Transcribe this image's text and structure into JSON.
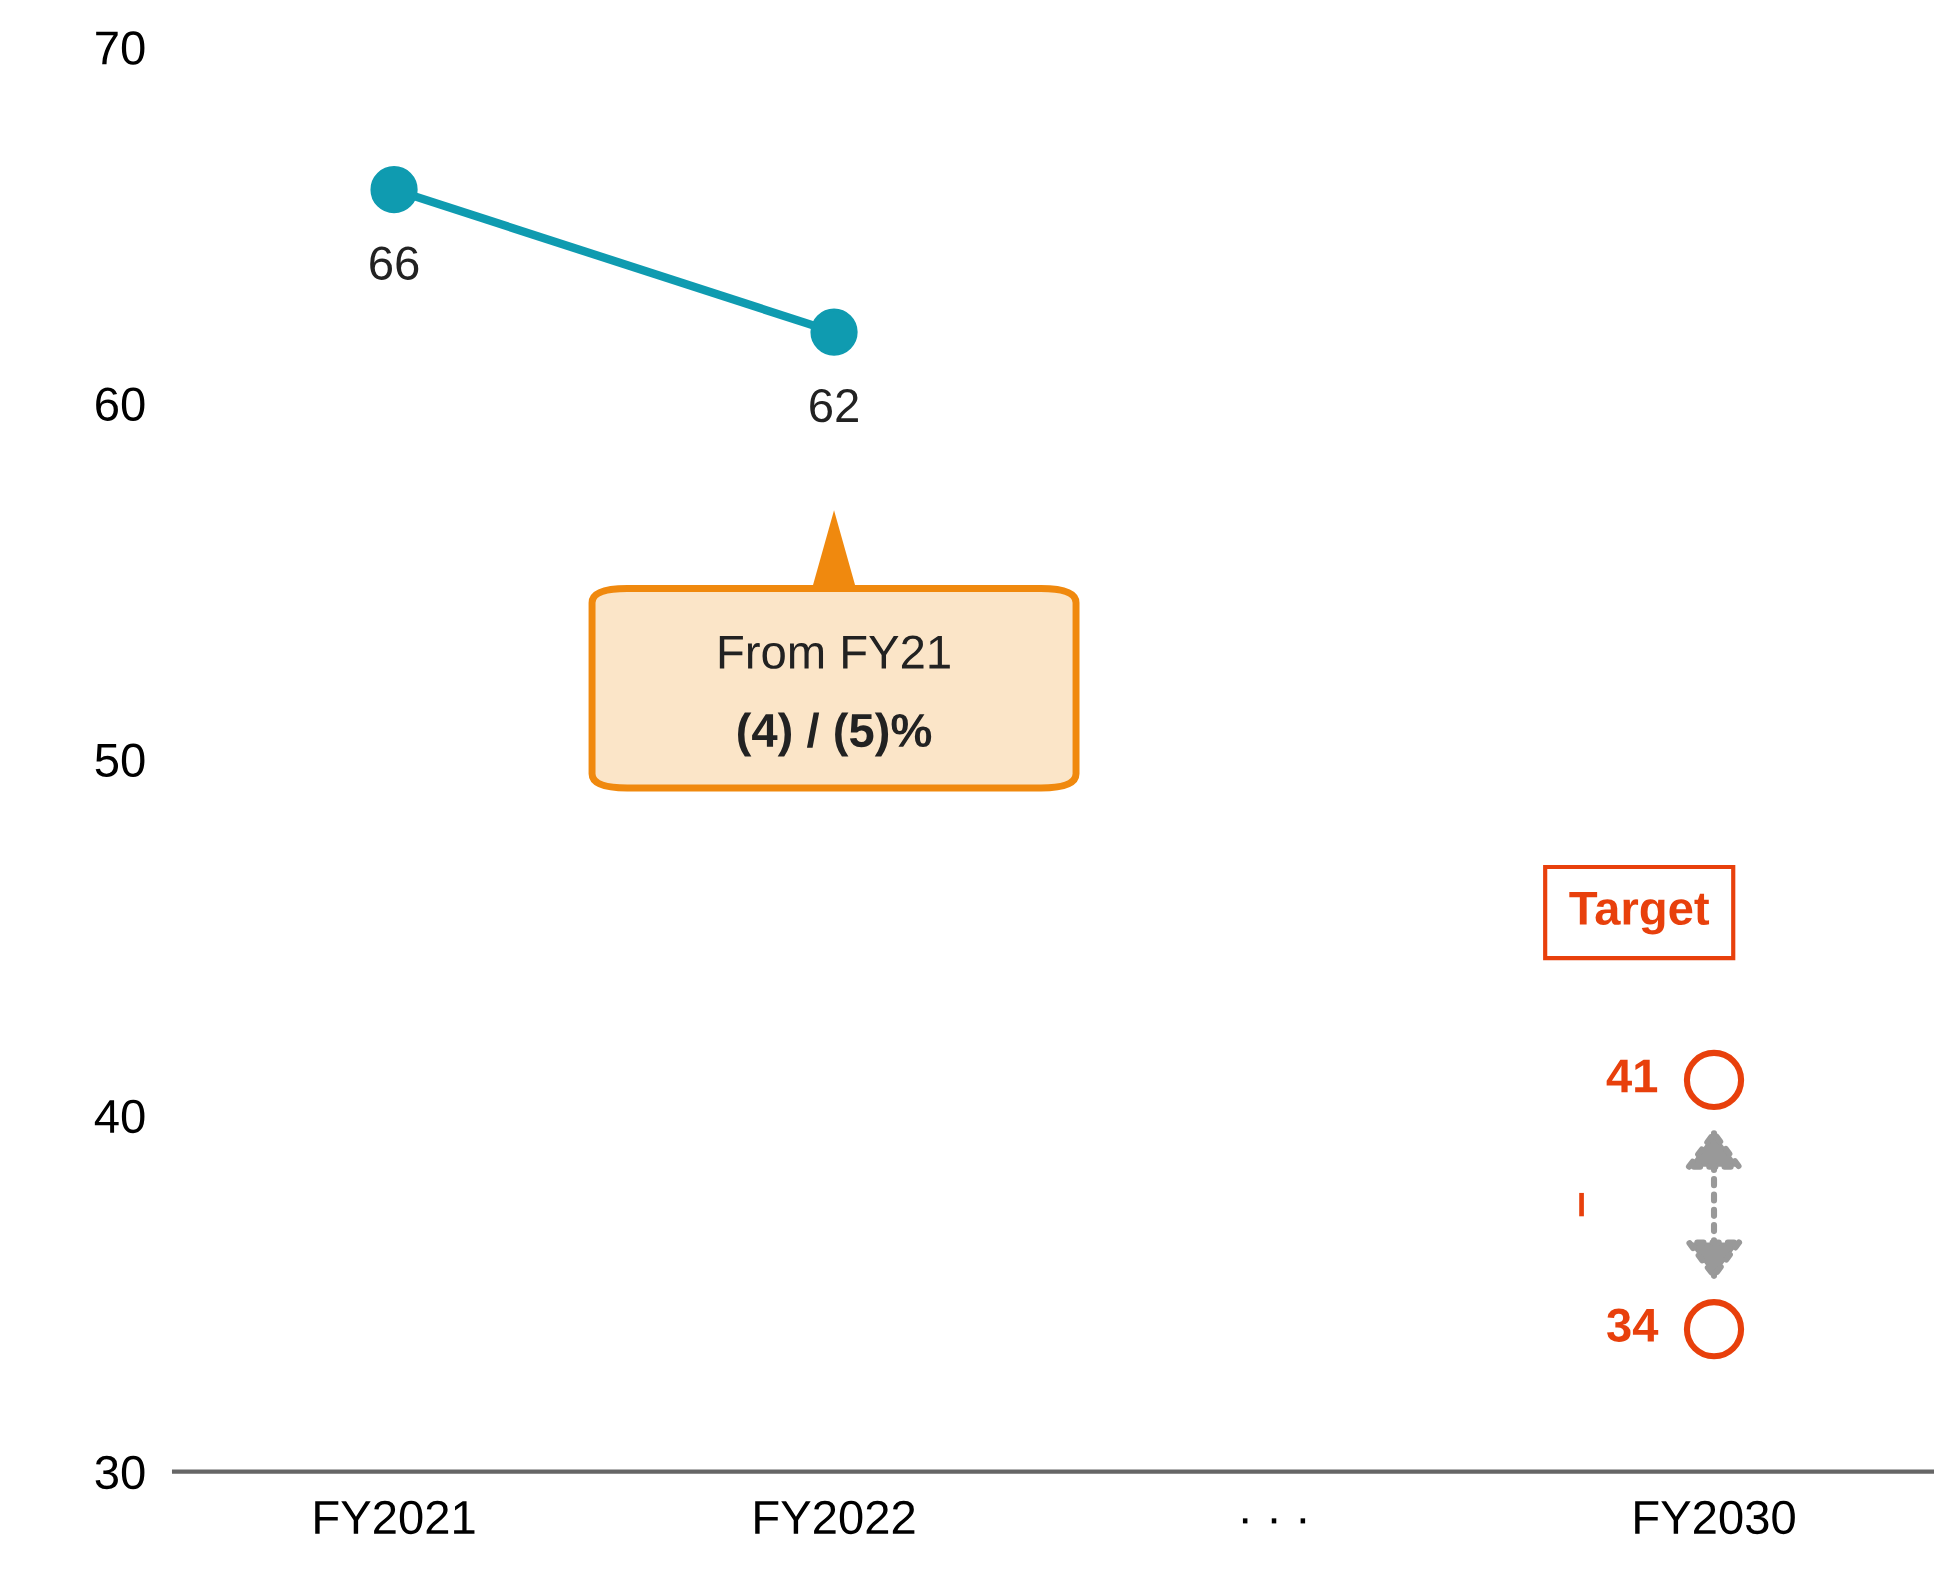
{
  "chart_data": {
    "type": "line",
    "categories": [
      "FY2021",
      "FY2022",
      "· · ·",
      "FY2030"
    ],
    "series": [
      {
        "color": "#0f9bb0",
        "values": [
          66,
          62,
          null,
          null
        ],
        "marker": "circle"
      },
      {
        "type": "scatter",
        "color": "#e8400c",
        "x": [
          "FY2030",
          "FY2030"
        ],
        "values": [
          41,
          34
        ],
        "marker": "circle"
      }
    ],
    "ylim": [
      30,
      70
    ],
    "yticks": [
      30,
      40,
      50,
      60,
      70
    ],
    "data_labels": true,
    "grid": false,
    "legend": false,
    "annotations": [
      "From FY21\n(4) / (5)%",
      "Target",
      "–"
    ]
  }
}
